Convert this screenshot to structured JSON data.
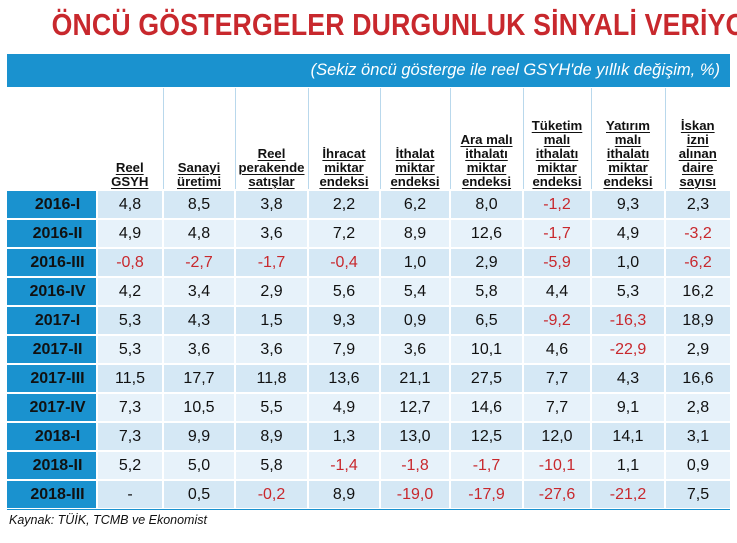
{
  "title": "ÖNCÜ GÖSTERGELER DURGUNLUK SİNYALİ VERİYOR",
  "subtitle": "(Sekiz öncü gösterge ile reel GSYH'de yıllık değişim, %)",
  "columns": [
    [
      "Reel",
      "GSYH"
    ],
    [
      "Sanayi",
      "üretimi"
    ],
    [
      "Reel",
      "perakende",
      "satışlar"
    ],
    [
      "İhracat",
      "miktar",
      "endeksi"
    ],
    [
      "İthalat",
      "miktar",
      "endeksi"
    ],
    [
      "Ara malı",
      "ithalatı",
      "miktar",
      "endeksi"
    ],
    [
      "Tüketim",
      "malı",
      "ithalatı",
      "miktar",
      "endeksi"
    ],
    [
      "Yatırım",
      "malı",
      "ithalatı",
      "miktar",
      "endeksi"
    ],
    [
      "İskan",
      "izni",
      "alınan",
      "daire",
      "sayısı"
    ]
  ],
  "rows": [
    {
      "label": "2016-I",
      "values": [
        "4,8",
        "8,5",
        "3,8",
        "2,2",
        "6,2",
        "8,0",
        "-1,2",
        "9,3",
        "2,3"
      ]
    },
    {
      "label": "2016-II",
      "values": [
        "4,9",
        "4,8",
        "3,6",
        "7,2",
        "8,9",
        "12,6",
        "-1,7",
        "4,9",
        "-3,2"
      ]
    },
    {
      "label": "2016-III",
      "values": [
        "-0,8",
        "-2,7",
        "-1,7",
        "-0,4",
        "1,0",
        "2,9",
        "-5,9",
        "1,0",
        "-6,2"
      ]
    },
    {
      "label": "2016-IV",
      "values": [
        "4,2",
        "3,4",
        "2,9",
        "5,6",
        "5,4",
        "5,8",
        "4,4",
        "5,3",
        "16,2"
      ]
    },
    {
      "label": "2017-I",
      "values": [
        "5,3",
        "4,3",
        "1,5",
        "9,3",
        "0,9",
        "6,5",
        "-9,2",
        "-16,3",
        "18,9"
      ]
    },
    {
      "label": "2017-II",
      "values": [
        "5,3",
        "3,6",
        "3,6",
        "7,9",
        "3,6",
        "10,1",
        "4,6",
        "-22,9",
        "2,9"
      ]
    },
    {
      "label": "2017-III",
      "values": [
        "11,5",
        "17,7",
        "11,8",
        "13,6",
        "21,1",
        "27,5",
        "7,7",
        "4,3",
        "16,6"
      ]
    },
    {
      "label": "2017-IV",
      "values": [
        "7,3",
        "10,5",
        "5,5",
        "4,9",
        "12,7",
        "14,6",
        "7,7",
        "9,1",
        "2,8"
      ]
    },
    {
      "label": "2018-I",
      "values": [
        "7,3",
        "9,9",
        "8,9",
        "1,3",
        "13,0",
        "12,5",
        "12,0",
        "14,1",
        "3,1"
      ]
    },
    {
      "label": "2018-II",
      "values": [
        "5,2",
        "5,0",
        "5,8",
        "-1,4",
        "-1,8",
        "-1,7",
        "-10,1",
        "1,1",
        "0,9"
      ]
    },
    {
      "label": "2018-III",
      "values": [
        "-",
        "0,5",
        "-0,2",
        "8,9",
        "-19,0",
        "-17,9",
        "-27,6",
        "-21,2",
        "7,5"
      ]
    }
  ],
  "source": "Kaynak: TÜİK, TCMB ve Ekonomist",
  "colors": {
    "accent": "#1a92cf",
    "title_red": "#c8282d",
    "negative": "#c8282d",
    "row_light": "#d5e8f5"
  }
}
